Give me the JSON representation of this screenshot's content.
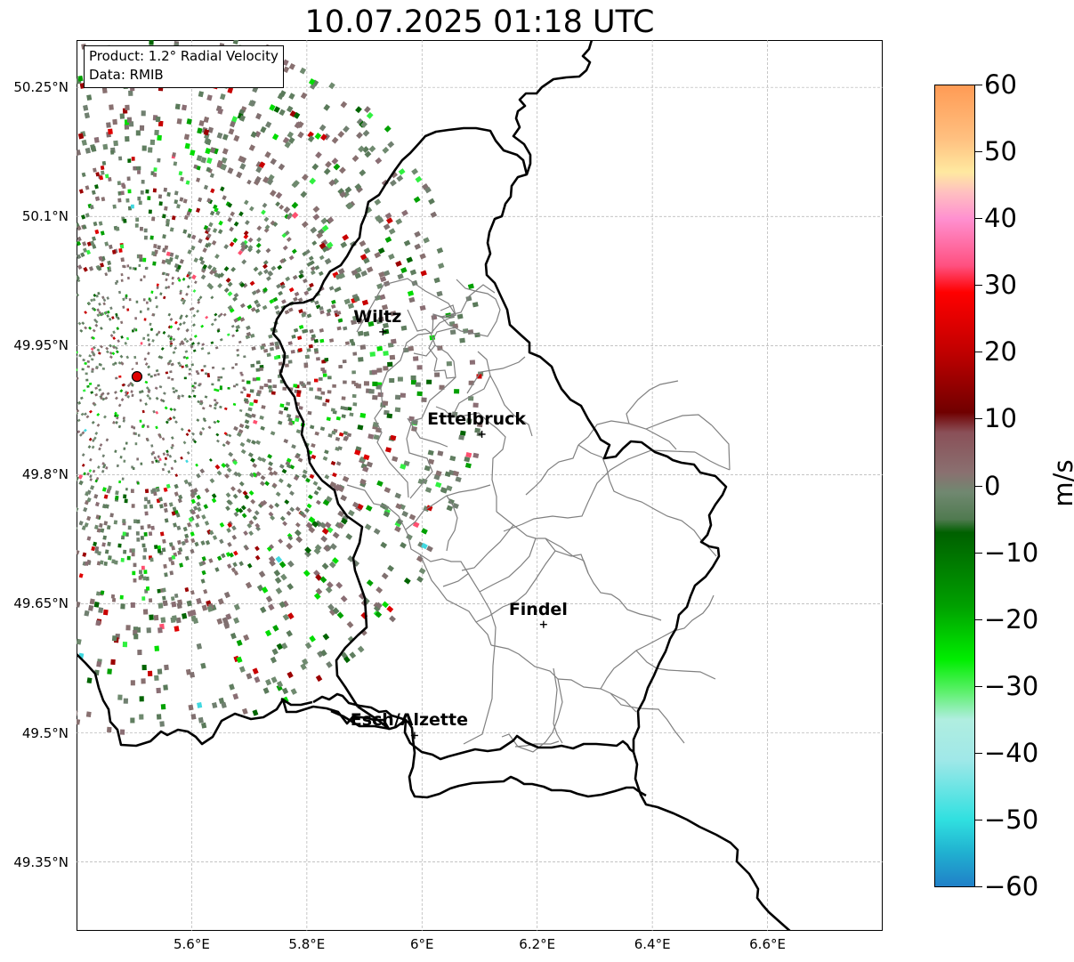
{
  "title": "10.07.2025 01:18 UTC",
  "info_box": {
    "product": "Product: 1.2° Radial Velocity",
    "data": "Data: RMIB"
  },
  "map": {
    "lon_range": [
      5.4,
      6.8
    ],
    "lat_range": [
      49.27,
      50.305
    ],
    "lat_ticks": [
      {
        "value": 50.25,
        "label": "50.25°N"
      },
      {
        "value": 50.1,
        "label": "50.1°N"
      },
      {
        "value": 49.95,
        "label": "49.95°N"
      },
      {
        "value": 49.8,
        "label": "49.8°N"
      },
      {
        "value": 49.65,
        "label": "49.65°N"
      },
      {
        "value": 49.5,
        "label": "49.5°N"
      },
      {
        "value": 49.35,
        "label": "49.35°N"
      }
    ],
    "lon_ticks": [
      {
        "value": 5.6,
        "label": "5.6°E"
      },
      {
        "value": 5.8,
        "label": "5.8°E"
      },
      {
        "value": 6.0,
        "label": "6°E"
      },
      {
        "value": 6.2,
        "label": "6.2°E"
      },
      {
        "value": 6.4,
        "label": "6.4°E"
      },
      {
        "value": 6.6,
        "label": "6.6°E"
      }
    ],
    "grid": true,
    "radar_site": {
      "lon": 5.505,
      "lat": 49.914,
      "color": "#e00000"
    },
    "cities": [
      {
        "name": "Wiltz",
        "lon": 5.932,
        "lat": 49.966
      },
      {
        "name": "Ettelbruck",
        "lon": 6.104,
        "lat": 49.847
      },
      {
        "name": "Findel",
        "lon": 6.211,
        "lat": 49.626
      },
      {
        "name": "Esch/Alzette",
        "lon": 5.987,
        "lat": 49.497
      }
    ]
  },
  "colorbar": {
    "unit": "m/s",
    "min": -60,
    "max": 60,
    "ticks": [
      {
        "value": 60,
        "label": "60"
      },
      {
        "value": 50,
        "label": "50"
      },
      {
        "value": 40,
        "label": "40"
      },
      {
        "value": 30,
        "label": "30"
      },
      {
        "value": 20,
        "label": "20"
      },
      {
        "value": 10,
        "label": "10"
      },
      {
        "value": 0,
        "label": "0"
      },
      {
        "value": -10,
        "label": "−10"
      },
      {
        "value": -20,
        "label": "−20"
      },
      {
        "value": -30,
        "label": "−30"
      },
      {
        "value": -40,
        "label": "−40"
      },
      {
        "value": -50,
        "label": "−50"
      },
      {
        "value": -60,
        "label": "−60"
      }
    ],
    "colors": {
      "velocity_stops": [
        {
          "value": 60,
          "color": "#ff9b55"
        },
        {
          "value": 52,
          "color": "#ffc080"
        },
        {
          "value": 47,
          "color": "#ffe9a0"
        },
        {
          "value": 44,
          "color": "#ffc0c0"
        },
        {
          "value": 40,
          "color": "#ff90d0"
        },
        {
          "value": 33,
          "color": "#ff5080"
        },
        {
          "value": 29,
          "color": "#ff0000"
        },
        {
          "value": 20,
          "color": "#c00000"
        },
        {
          "value": 11,
          "color": "#700000"
        },
        {
          "value": 8,
          "color": "#8a5058"
        },
        {
          "value": 2,
          "color": "#8a7070"
        },
        {
          "value": -1,
          "color": "#708870"
        },
        {
          "value": -5,
          "color": "#507a50"
        },
        {
          "value": -7,
          "color": "#006000"
        },
        {
          "value": -18,
          "color": "#00a000"
        },
        {
          "value": -26,
          "color": "#00ee00"
        },
        {
          "value": -31,
          "color": "#60f070"
        },
        {
          "value": -35,
          "color": "#b0eee0"
        },
        {
          "value": -41,
          "color": "#a0e8e8"
        },
        {
          "value": -50,
          "color": "#30e0e0"
        },
        {
          "value": -55,
          "color": "#20b0d0"
        },
        {
          "value": -60,
          "color": "#2080c8"
        }
      ]
    }
  }
}
